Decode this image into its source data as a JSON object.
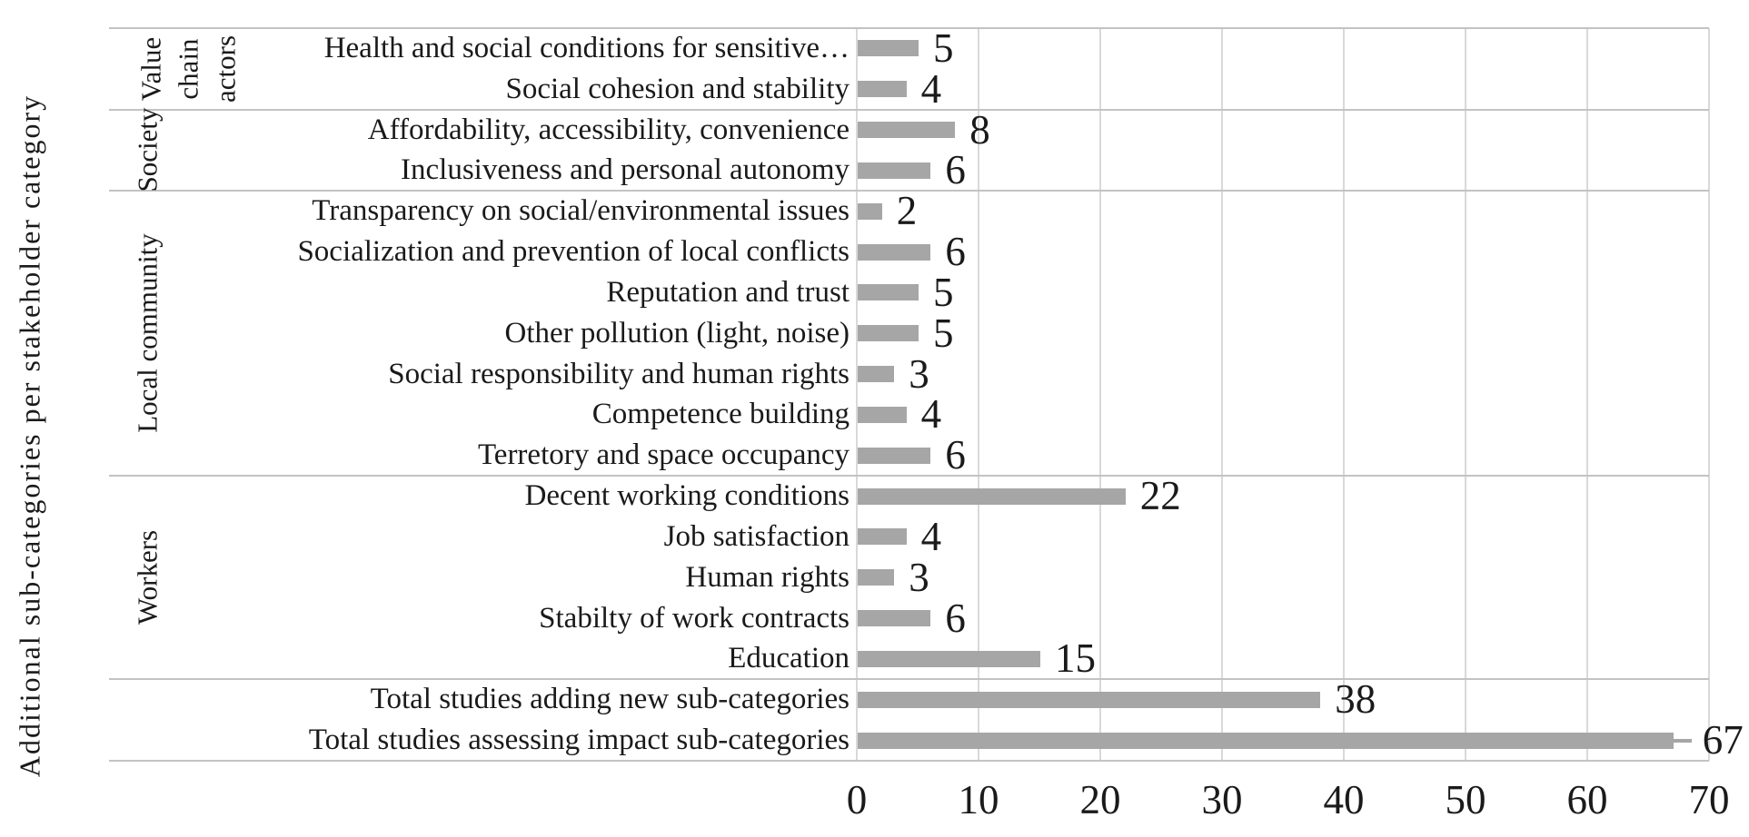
{
  "chart_data": {
    "type": "bar",
    "orientation": "horizontal",
    "title": "",
    "xlabel": "",
    "ylabel": "Additional sub-categories per stakeholder category",
    "xlim": [
      0,
      70
    ],
    "x_ticks": [
      0,
      10,
      20,
      30,
      40,
      50,
      60,
      70
    ],
    "grid": true,
    "legend": false,
    "bar_color": "#a6a6a6",
    "gridline_color": "#d9d9d9",
    "divider_color": "#c3c3c3",
    "text_color": "#1a1a1a",
    "background_color": "#ffffff",
    "groups": [
      {
        "name": "Value chain actors",
        "label_lines": [
          "Value",
          "chain",
          "actors"
        ],
        "start_row": 0,
        "row_count": 2
      },
      {
        "name": "Society",
        "label_lines": [
          "Society"
        ],
        "start_row": 2,
        "row_count": 2
      },
      {
        "name": "Local community",
        "label_lines": [
          "Local community"
        ],
        "start_row": 4,
        "row_count": 7
      },
      {
        "name": "Workers",
        "label_lines": [
          "Workers"
        ],
        "start_row": 11,
        "row_count": 5
      },
      {
        "name": "",
        "label_lines": [],
        "start_row": 16,
        "row_count": 2
      }
    ],
    "categories": [
      "Health and social conditions for sensitive…",
      "Social cohesion and stability",
      "Affordability, accessibility, convenience",
      "Inclusiveness and personal autonomy",
      "Transparency on social/environmental issues",
      "Socialization and prevention of local conflicts",
      "Reputation and trust",
      "Other pollution (light, noise)",
      "Social responsibility and human rights",
      "Competence building",
      "Terretory and space occupancy",
      "Decent working conditions",
      "Job satisfaction",
      "Human rights",
      "Stabilty of work contracts",
      "Education",
      "Total studies adding new sub-categories",
      "Total studies assessing impact sub-categories"
    ],
    "values": [
      5,
      4,
      8,
      6,
      2,
      6,
      5,
      5,
      3,
      4,
      6,
      22,
      4,
      3,
      6,
      15,
      38,
      67
    ],
    "end_whisker_row": 17
  }
}
